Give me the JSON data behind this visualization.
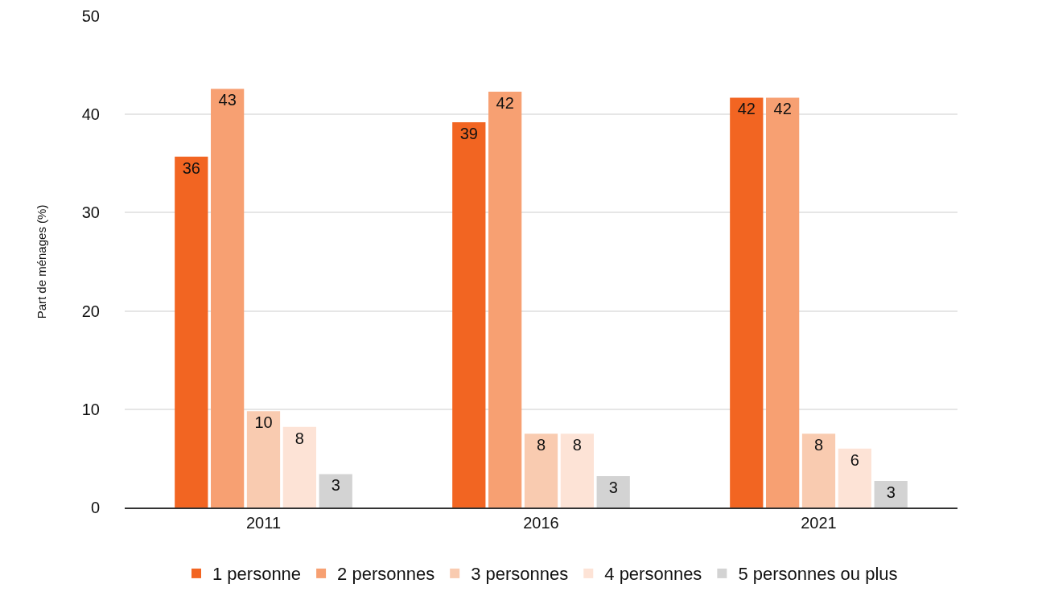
{
  "chart_data": {
    "type": "bar",
    "ylabel": "Part de ménages (%)",
    "categories": [
      "2011",
      "2016",
      "2021"
    ],
    "series": [
      {
        "name": "1 personne",
        "color": "#f26522",
        "values": [
          35.7,
          39.2,
          41.7
        ],
        "value_labels": [
          "36",
          "39",
          "42"
        ]
      },
      {
        "name": "2 personnes",
        "color": "#f7a072",
        "values": [
          42.6,
          42.3,
          41.7
        ],
        "value_labels": [
          "43",
          "42",
          "42"
        ]
      },
      {
        "name": "3 personnes",
        "color": "#f9cbb0",
        "values": [
          9.8,
          7.5,
          7.5
        ],
        "value_labels": [
          "10",
          "8",
          "8"
        ]
      },
      {
        "name": "4 personnes",
        "color": "#fde3d6",
        "values": [
          8.2,
          7.5,
          6.0
        ],
        "value_labels": [
          "8",
          "8",
          "6"
        ]
      },
      {
        "name": "5 personnes ou plus",
        "color": "#d3d3d3",
        "values": [
          3.4,
          3.2,
          2.7
        ],
        "value_labels": [
          "3",
          "3",
          "3"
        ]
      }
    ],
    "ylim": [
      0,
      50
    ],
    "yticks": [
      0,
      10,
      20,
      30,
      40,
      50
    ],
    "grid": "y",
    "legend": "bottom"
  }
}
